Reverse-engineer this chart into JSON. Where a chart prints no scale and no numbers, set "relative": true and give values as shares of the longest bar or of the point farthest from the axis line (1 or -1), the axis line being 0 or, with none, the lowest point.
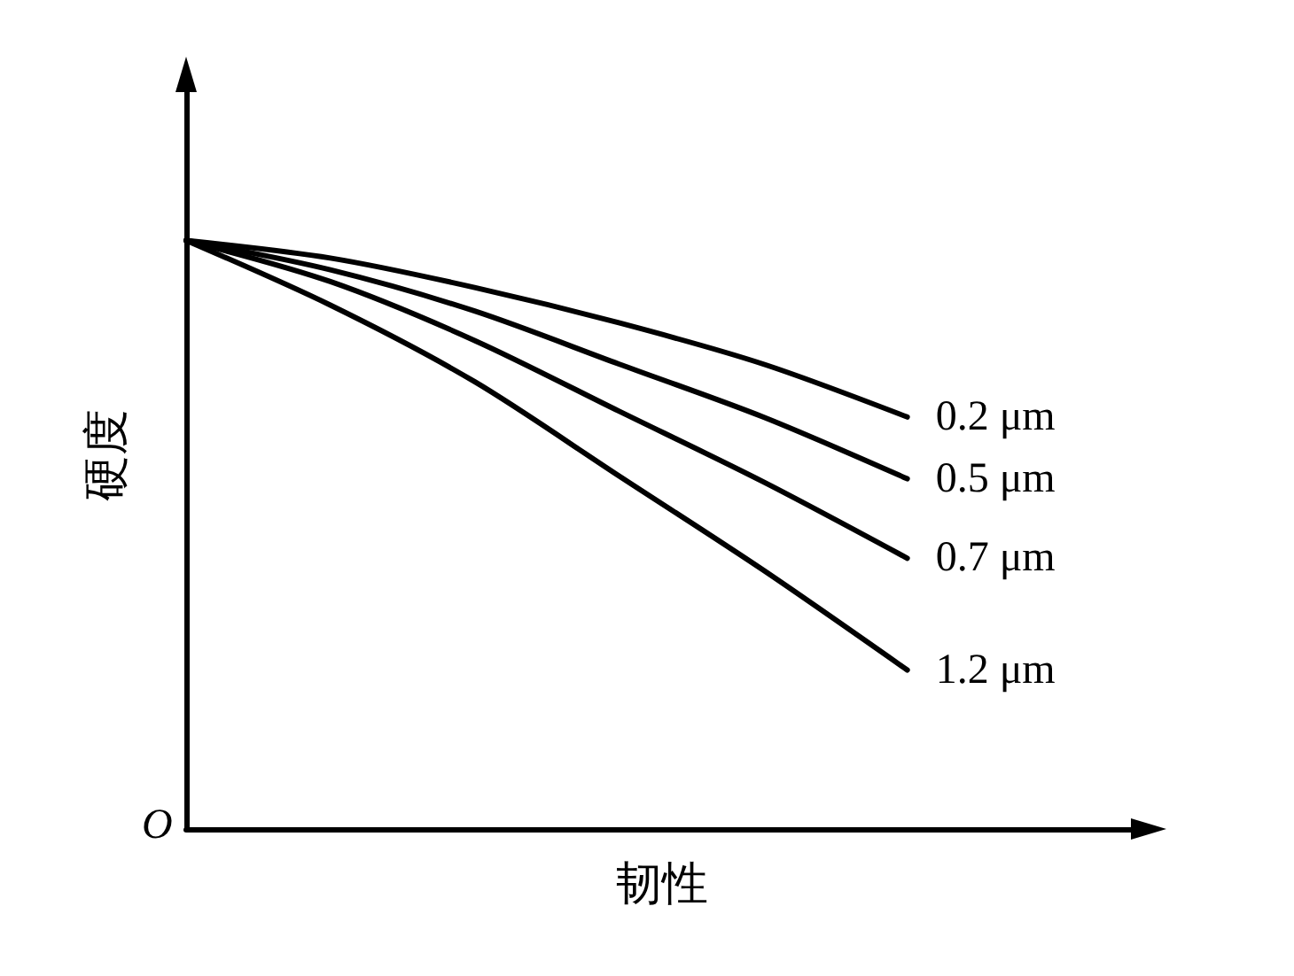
{
  "chart_data": {
    "type": "line",
    "relative": true,
    "xlabel": "韧性",
    "ylabel": "硬度",
    "annotations": [
      "O"
    ],
    "categories": [
      null,
      null,
      null,
      null,
      null,
      null
    ],
    "legend": false,
    "grid": false,
    "marker": "none",
    "line_style": "solid",
    "series": [
      {
        "name": "0.2 μm",
        "color": "#000000",
        "values": [
          1,
          0.97,
          0.92,
          0.86,
          0.79,
          0.7
        ]
      },
      {
        "name": "0.5 μm",
        "color": "#000000",
        "values": [
          1,
          0.95,
          0.88,
          0.79,
          0.7,
          0.595
        ]
      },
      {
        "name": "0.7 μm",
        "color": "#000000",
        "values": [
          1,
          0.93,
          0.83,
          0.71,
          0.59,
          0.46
        ]
      },
      {
        "name": "1.2 μm",
        "color": "#000000",
        "values": [
          1,
          0.89,
          0.76,
          0.6,
          0.44,
          0.27
        ]
      }
    ]
  }
}
